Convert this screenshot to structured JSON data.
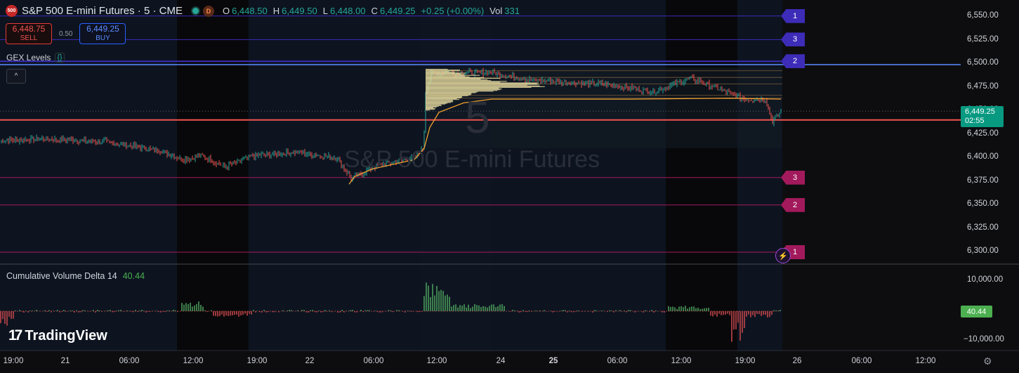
{
  "header": {
    "logo_text": "500",
    "title": "S&P 500 E-mini Futures · 5 · CME",
    "session_badge": "D",
    "ohlc": [
      {
        "key": "O",
        "value": "6,448.50"
      },
      {
        "key": "H",
        "value": "6,449.50"
      },
      {
        "key": "L",
        "value": "6,448.00"
      },
      {
        "key": "C",
        "value": "6,449.25"
      },
      {
        "key": "",
        "value": "+0.25 (+0.00%)"
      },
      {
        "key": "Vol",
        "value": "331"
      }
    ]
  },
  "trade": {
    "sell_price": "6,448.75",
    "sell_label": "SELL",
    "spread": "0.50",
    "buy_price": "6,449.25",
    "buy_label": "BUY"
  },
  "indicators": {
    "gex_label": "GEX Levels",
    "gex_icon": "{}",
    "collapse_icon": "^",
    "cvd_label": "Cumulative Volume Delta 14",
    "cvd_value": "40.44"
  },
  "watermark": {
    "symbol_name": "S&P 500 E-mini Futures",
    "interval": "5"
  },
  "levels": [
    {
      "label": "1",
      "price": 6550,
      "color": "#3d2cb8",
      "kind": "blue"
    },
    {
      "label": "3",
      "price": 6525,
      "color": "#3d2cb8",
      "kind": "blue"
    },
    {
      "label": "2",
      "price": 6502,
      "color": "#3d2cb8",
      "kind": "blue"
    },
    {
      "label": "3",
      "price": 6379,
      "color": "#a21a5c",
      "kind": "red"
    },
    {
      "label": "2",
      "price": 6350,
      "color": "#a21a5c",
      "kind": "red"
    },
    {
      "label": "1",
      "price": 6300,
      "color": "#a21a5c",
      "kind": "red"
    }
  ],
  "price_axis": {
    "ticks": [
      "6,550.00",
      "6,525.00",
      "6,500.00",
      "6,475.00",
      "6,450.00",
      "6,425.00",
      "6,400.00",
      "6,375.00",
      "6,350.00",
      "6,325.00",
      "6,300.00"
    ],
    "current_price": "6,449.25",
    "countdown": "02:55",
    "key_level": 6440
  },
  "cvd_axis": {
    "ticks": [
      "10,000.00",
      "−10,000.00"
    ],
    "current": "40.44"
  },
  "time_axis": [
    {
      "label": "19:00",
      "bold": false
    },
    {
      "label": "21",
      "bold": false
    },
    {
      "label": "06:00",
      "bold": false
    },
    {
      "label": "12:00",
      "bold": false
    },
    {
      "label": "19:00",
      "bold": false
    },
    {
      "label": "22",
      "bold": false
    },
    {
      "label": "06:00",
      "bold": false
    },
    {
      "label": "12:00",
      "bold": false
    },
    {
      "label": "24",
      "bold": false
    },
    {
      "label": "25",
      "bold": true
    },
    {
      "label": "06:00",
      "bold": false
    },
    {
      "label": "12:00",
      "bold": false
    },
    {
      "label": "19:00",
      "bold": false
    },
    {
      "label": "26",
      "bold": false
    },
    {
      "label": "06:00",
      "bold": false
    },
    {
      "label": "12:00",
      "bold": false
    }
  ],
  "branding": {
    "logo_mark": "17",
    "logo_text": "TradingView"
  },
  "colors": {
    "up": "#26a69a",
    "down": "#ef5350",
    "vwap": "#f0a030",
    "profile": "#e8dca0",
    "cvd_badge": "#4caf50"
  },
  "icons": {
    "bolt": "⚡",
    "gear": "⚙"
  }
}
